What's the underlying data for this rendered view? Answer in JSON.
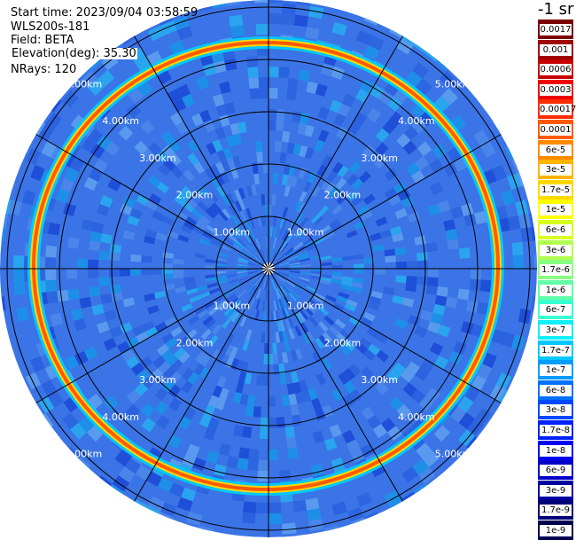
{
  "info": {
    "start_time": "Start time: 2023/09/04 03:58:59",
    "site": "WLS200s-181",
    "field": "Field: BETA",
    "elevation": "Elevation(deg): 35.30",
    "nrays": "NRays: 120"
  },
  "unit_label": "-1 sr",
  "range_labels": [
    "1.00km",
    "2.00km",
    "3.00km",
    "4.00km",
    "5.00km"
  ],
  "colorbar": [
    {
      "label": "0.0017",
      "color": "#7a0000"
    },
    {
      "label": "0.001",
      "color": "#a00000"
    },
    {
      "label": "0.0006",
      "color": "#c80000"
    },
    {
      "label": "0.0003",
      "color": "#ee0000"
    },
    {
      "label": "0.00017",
      "color": "#ff2a00"
    },
    {
      "label": "0.0001",
      "color": "#ff5a00"
    },
    {
      "label": "6e-5",
      "color": "#ff8a00"
    },
    {
      "label": "3e-5",
      "color": "#ffb400"
    },
    {
      "label": "1.7e-5",
      "color": "#ffd800"
    },
    {
      "label": "1e-5",
      "color": "#ffff00"
    },
    {
      "label": "6e-6",
      "color": "#d8ff20"
    },
    {
      "label": "3e-6",
      "color": "#b0ff50"
    },
    {
      "label": "1.7e-6",
      "color": "#88ff80"
    },
    {
      "label": "1e-6",
      "color": "#60ffa8"
    },
    {
      "label": "6e-7",
      "color": "#38ffd0"
    },
    {
      "label": "3e-7",
      "color": "#10f0f8"
    },
    {
      "label": "1.7e-7",
      "color": "#00c8ff"
    },
    {
      "label": "1e-7",
      "color": "#009cff"
    },
    {
      "label": "6e-8",
      "color": "#0070ff"
    },
    {
      "label": "3e-8",
      "color": "#0048ff"
    },
    {
      "label": "1.7e-8",
      "color": "#0020ff"
    },
    {
      "label": "1e-8",
      "color": "#0000f0"
    },
    {
      "label": "6e-9",
      "color": "#0000c8"
    },
    {
      "label": "3e-9",
      "color": "#0000a0"
    },
    {
      "label": "1.7e-9",
      "color": "#000078"
    },
    {
      "label": "1e-9",
      "color": "#000050"
    }
  ],
  "colors": {
    "background_field": "#3b74e6",
    "high_band": "#ff8c00",
    "grid": "#000000",
    "range_text": "#ffffff"
  }
}
